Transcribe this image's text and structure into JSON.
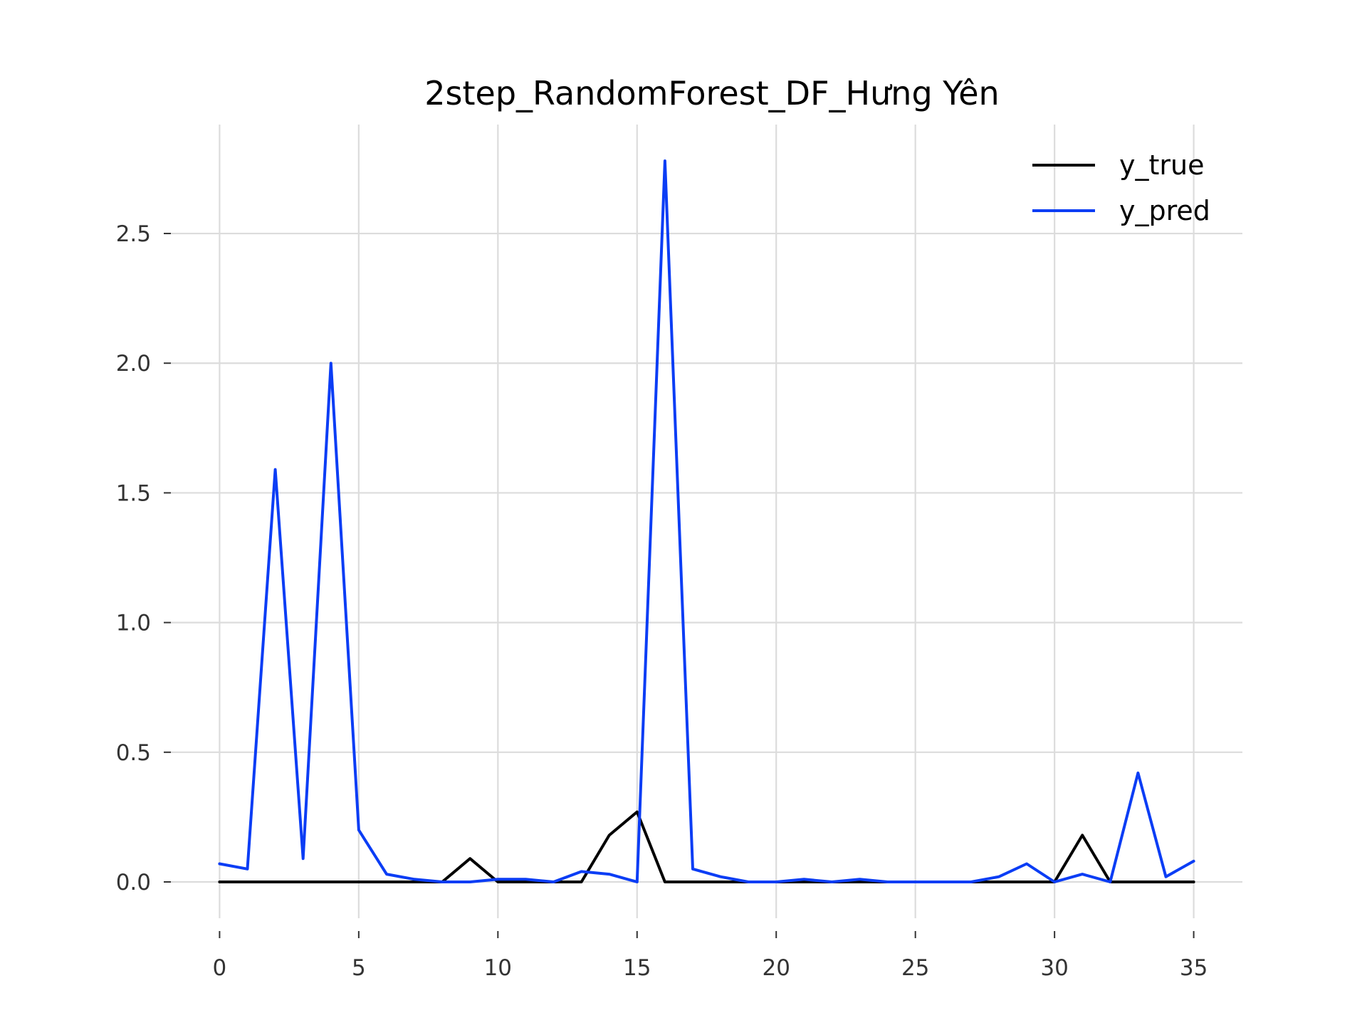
{
  "chart_data": {
    "type": "line",
    "title": "2step_RandomForest_DF_Hưng Yên",
    "xlabel": "",
    "ylabel": "",
    "xlim": [
      -1.75,
      36.75
    ],
    "ylim": [
      -0.14,
      2.92
    ],
    "xticks": [
      0,
      5,
      10,
      15,
      20,
      25,
      30,
      35
    ],
    "xtick_labels": [
      "0",
      "5",
      "10",
      "15",
      "20",
      "25",
      "30",
      "35"
    ],
    "yticks": [
      0.0,
      0.5,
      1.0,
      1.5,
      2.0,
      2.5
    ],
    "ytick_labels": [
      "0.0",
      "0.5",
      "1.0",
      "1.5",
      "2.0",
      "2.5"
    ],
    "grid": true,
    "legend": "top-right",
    "x": [
      0,
      1,
      2,
      3,
      4,
      5,
      6,
      7,
      8,
      9,
      10,
      11,
      12,
      13,
      14,
      15,
      16,
      17,
      18,
      19,
      20,
      21,
      22,
      23,
      24,
      25,
      26,
      27,
      28,
      29,
      30,
      31,
      32,
      33,
      34,
      35
    ],
    "series": [
      {
        "name": "y_true",
        "color": "#000000",
        "values": [
          0,
          0,
          0,
          0,
          0,
          0,
          0,
          0,
          0,
          0.09,
          0,
          0,
          0,
          0,
          0.18,
          0.27,
          0,
          0,
          0,
          0,
          0,
          0,
          0,
          0,
          0,
          0,
          0,
          0,
          0,
          0,
          0,
          0.18,
          0,
          0,
          0,
          0
        ]
      },
      {
        "name": "y_pred",
        "color": "#0b3df5",
        "values": [
          0.07,
          0.05,
          1.59,
          0.09,
          2.0,
          0.2,
          0.03,
          0.01,
          0.0,
          0.0,
          0.01,
          0.01,
          0.0,
          0.04,
          0.03,
          0.0,
          2.78,
          0.05,
          0.02,
          0.0,
          0.0,
          0.01,
          0.0,
          0.01,
          0.0,
          0.0,
          0.0,
          0.0,
          0.02,
          0.07,
          0.0,
          0.03,
          0.0,
          0.42,
          0.02,
          0.08
        ]
      }
    ]
  }
}
